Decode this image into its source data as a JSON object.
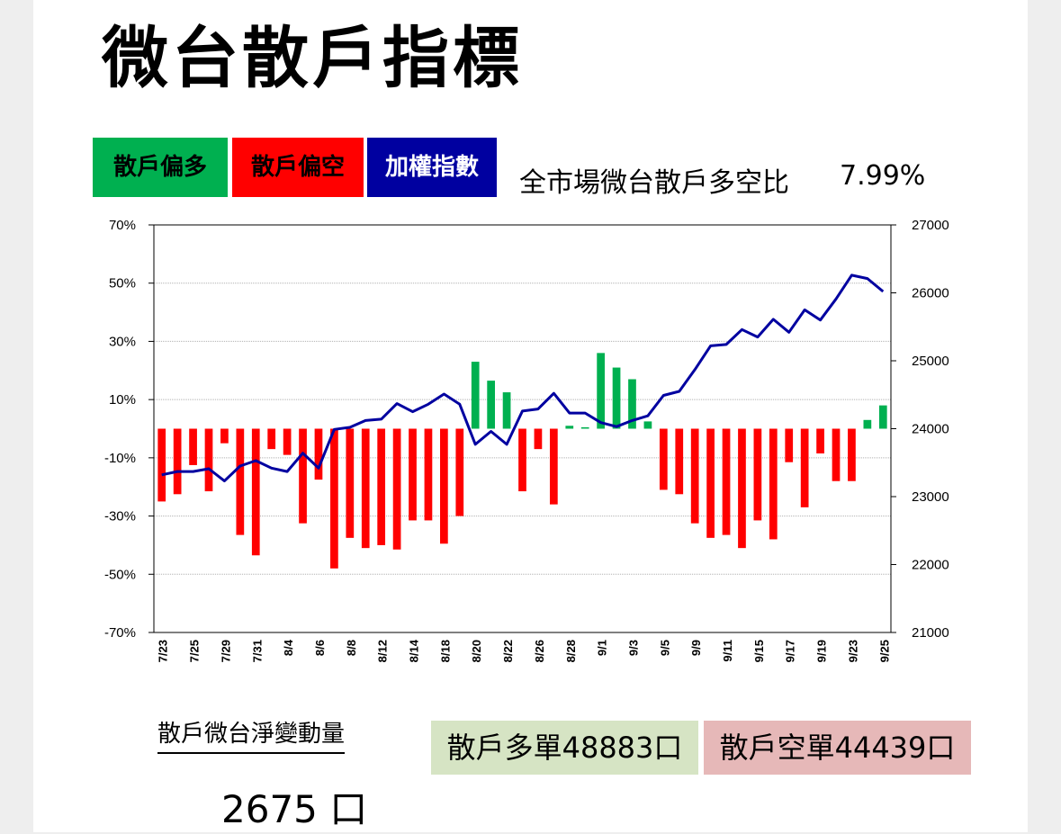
{
  "title": "微台散戶指標",
  "legend": {
    "long": "散戶偏多",
    "short": "散戶偏空",
    "index": "加權指數"
  },
  "ratio": {
    "label": "全市場微台散戶多空比",
    "value": "7.99%"
  },
  "summary": {
    "net_label": "散戶微台淨變動量",
    "net_value": "2675 口",
    "long_orders": "散戶多單48883口",
    "short_orders": "散戶空單44439口"
  },
  "colors": {
    "long": "#00b050",
    "short": "#ff0000",
    "index": "#0000a0"
  },
  "chart_data": {
    "type": "bar+line",
    "left_axis": {
      "min": -70,
      "max": 70,
      "ticks": [
        "70%",
        "50%",
        "30%",
        "10%",
        "-10%",
        "-30%",
        "-50%",
        "-70%"
      ],
      "tick_values": [
        70,
        50,
        30,
        10,
        -10,
        -30,
        -50,
        -70
      ]
    },
    "right_axis": {
      "min": 21000,
      "max": 27000,
      "ticks": [
        "27000",
        "26000",
        "25000",
        "24000",
        "23000",
        "22000",
        "21000"
      ],
      "tick_values": [
        27000,
        26000,
        25000,
        24000,
        23000,
        22000,
        21000
      ]
    },
    "x_tick_labels": [
      "7/23",
      "7/25",
      "7/29",
      "7/31",
      "8/4",
      "8/6",
      "8/8",
      "8/12",
      "8/14",
      "8/18",
      "8/20",
      "8/22",
      "8/26",
      "8/28",
      "9/1",
      "9/3",
      "9/5",
      "9/9",
      "9/11",
      "9/15",
      "9/17",
      "9/19",
      "9/23",
      "9/25"
    ],
    "bars": {
      "name": "散戶多空比 (%)",
      "values": [
        -25,
        -22.5,
        -12.5,
        -21.5,
        -5,
        -36.5,
        -43.5,
        -7,
        -9,
        -32.5,
        -17.5,
        -48,
        -37.5,
        -41,
        -40,
        -41.5,
        -31.5,
        -31.5,
        -39.5,
        -30,
        23,
        16.5,
        12.5,
        -21.5,
        -7,
        -26,
        1,
        0.5,
        26,
        21,
        17,
        2.5,
        -21,
        -22.5,
        -32.5,
        -37.5,
        -36.5,
        -41,
        -31.5,
        -38,
        -11.5,
        -27,
        -8.5,
        -18,
        -18,
        3,
        8
      ]
    },
    "line": {
      "name": "加權指數",
      "values": [
        23320,
        23370,
        23370,
        23410,
        23230,
        23450,
        23530,
        23420,
        23370,
        23640,
        23420,
        23990,
        24020,
        24120,
        24140,
        24370,
        24250,
        24360,
        24510,
        24360,
        23770,
        23960,
        23770,
        24260,
        24290,
        24520,
        24230,
        24230,
        24090,
        24030,
        24120,
        24190,
        24490,
        24550,
        24870,
        25220,
        25240,
        25460,
        25350,
        25610,
        25420,
        25750,
        25600,
        25910,
        26260,
        26210,
        26020
      ]
    }
  }
}
